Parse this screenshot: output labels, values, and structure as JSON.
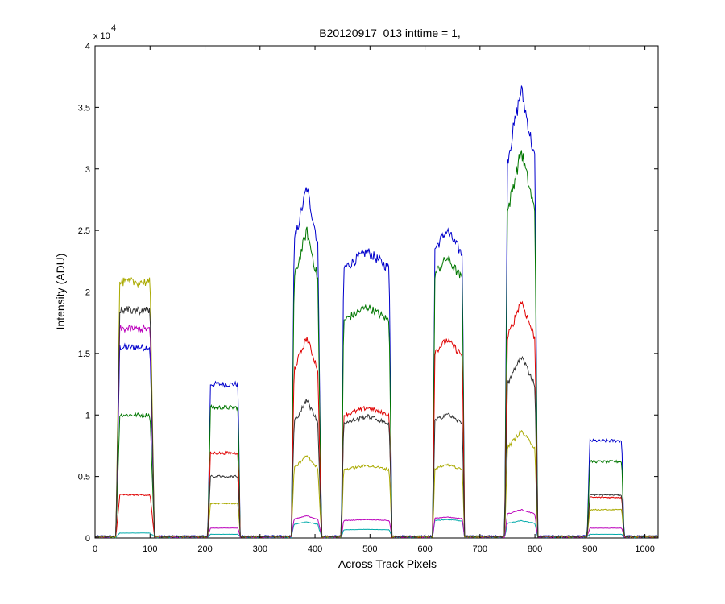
{
  "chart_data": {
    "type": "line",
    "title": "B20120917_013 inttime = 1,",
    "xlabel": "Across Track Pixels",
    "ylabel": "Intensity (ADU)",
    "exponent_label": "x 10",
    "exponent_power": "4",
    "xlim": [
      0,
      1024
    ],
    "ylim": [
      0,
      40000
    ],
    "xticks": [
      0,
      100,
      200,
      300,
      400,
      500,
      600,
      700,
      800,
      900,
      1000
    ],
    "yticks": [
      0,
      5000,
      10000,
      15000,
      20000,
      25000,
      30000,
      35000,
      40000
    ],
    "yticklabels": [
      "0",
      "0.5",
      "1",
      "1.5",
      "2",
      "2.5",
      "3",
      "3.5",
      "4"
    ],
    "grid": false,
    "peak_shape": {
      "x": [
        0,
        38,
        45,
        70,
        100,
        108,
        200,
        205,
        210,
        235,
        260,
        264,
        350,
        357,
        362,
        385,
        405,
        412,
        442,
        448,
        452,
        495,
        535,
        540,
        608,
        614,
        618,
        640,
        668,
        672,
        740,
        745,
        750,
        775,
        800,
        805,
        890,
        895,
        900,
        930,
        958,
        962,
        1024
      ],
      "shape": [
        0,
        0,
        1,
        1,
        1,
        0,
        0,
        0,
        1,
        1,
        1,
        0,
        0,
        0,
        0.84,
        1,
        0.84,
        0,
        0,
        0,
        0.94,
        1,
        0.94,
        0,
        0,
        0,
        0.94,
        1,
        0.92,
        0,
        0,
        0,
        0.84,
        1,
        0.84,
        0,
        0,
        0,
        1,
        1,
        1,
        0,
        0
      ]
    },
    "series": [
      {
        "color": "#0000cc",
        "baseline": 150,
        "peaks": [
          15500,
          12500,
          28500,
          23300,
          25000,
          36500,
          7900
        ]
      },
      {
        "color": "#007700",
        "baseline": 120,
        "peaks": [
          10000,
          10600,
          25000,
          18800,
          22800,
          31500,
          6200
        ]
      },
      {
        "color": "#e00000",
        "baseline": 100,
        "peaks": [
          3500,
          6900,
          16300,
          10600,
          16100,
          19300,
          3300
        ]
      },
      {
        "color": "#00aaaa",
        "baseline": 80,
        "peaks": [
          400,
          300,
          1300,
          700,
          1500,
          1400,
          300
        ]
      },
      {
        "color": "#bb00bb",
        "baseline": 90,
        "peaks": [
          17000,
          800,
          1800,
          1500,
          1700,
          2300,
          800
        ]
      },
      {
        "color": "#aaaa00",
        "baseline": 110,
        "peaks": [
          20800,
          2800,
          6700,
          5900,
          6000,
          8700,
          2300
        ]
      },
      {
        "color": "#333333",
        "baseline": 130,
        "peaks": [
          18500,
          5000,
          11200,
          9900,
          10100,
          14800,
          3500
        ]
      }
    ]
  }
}
